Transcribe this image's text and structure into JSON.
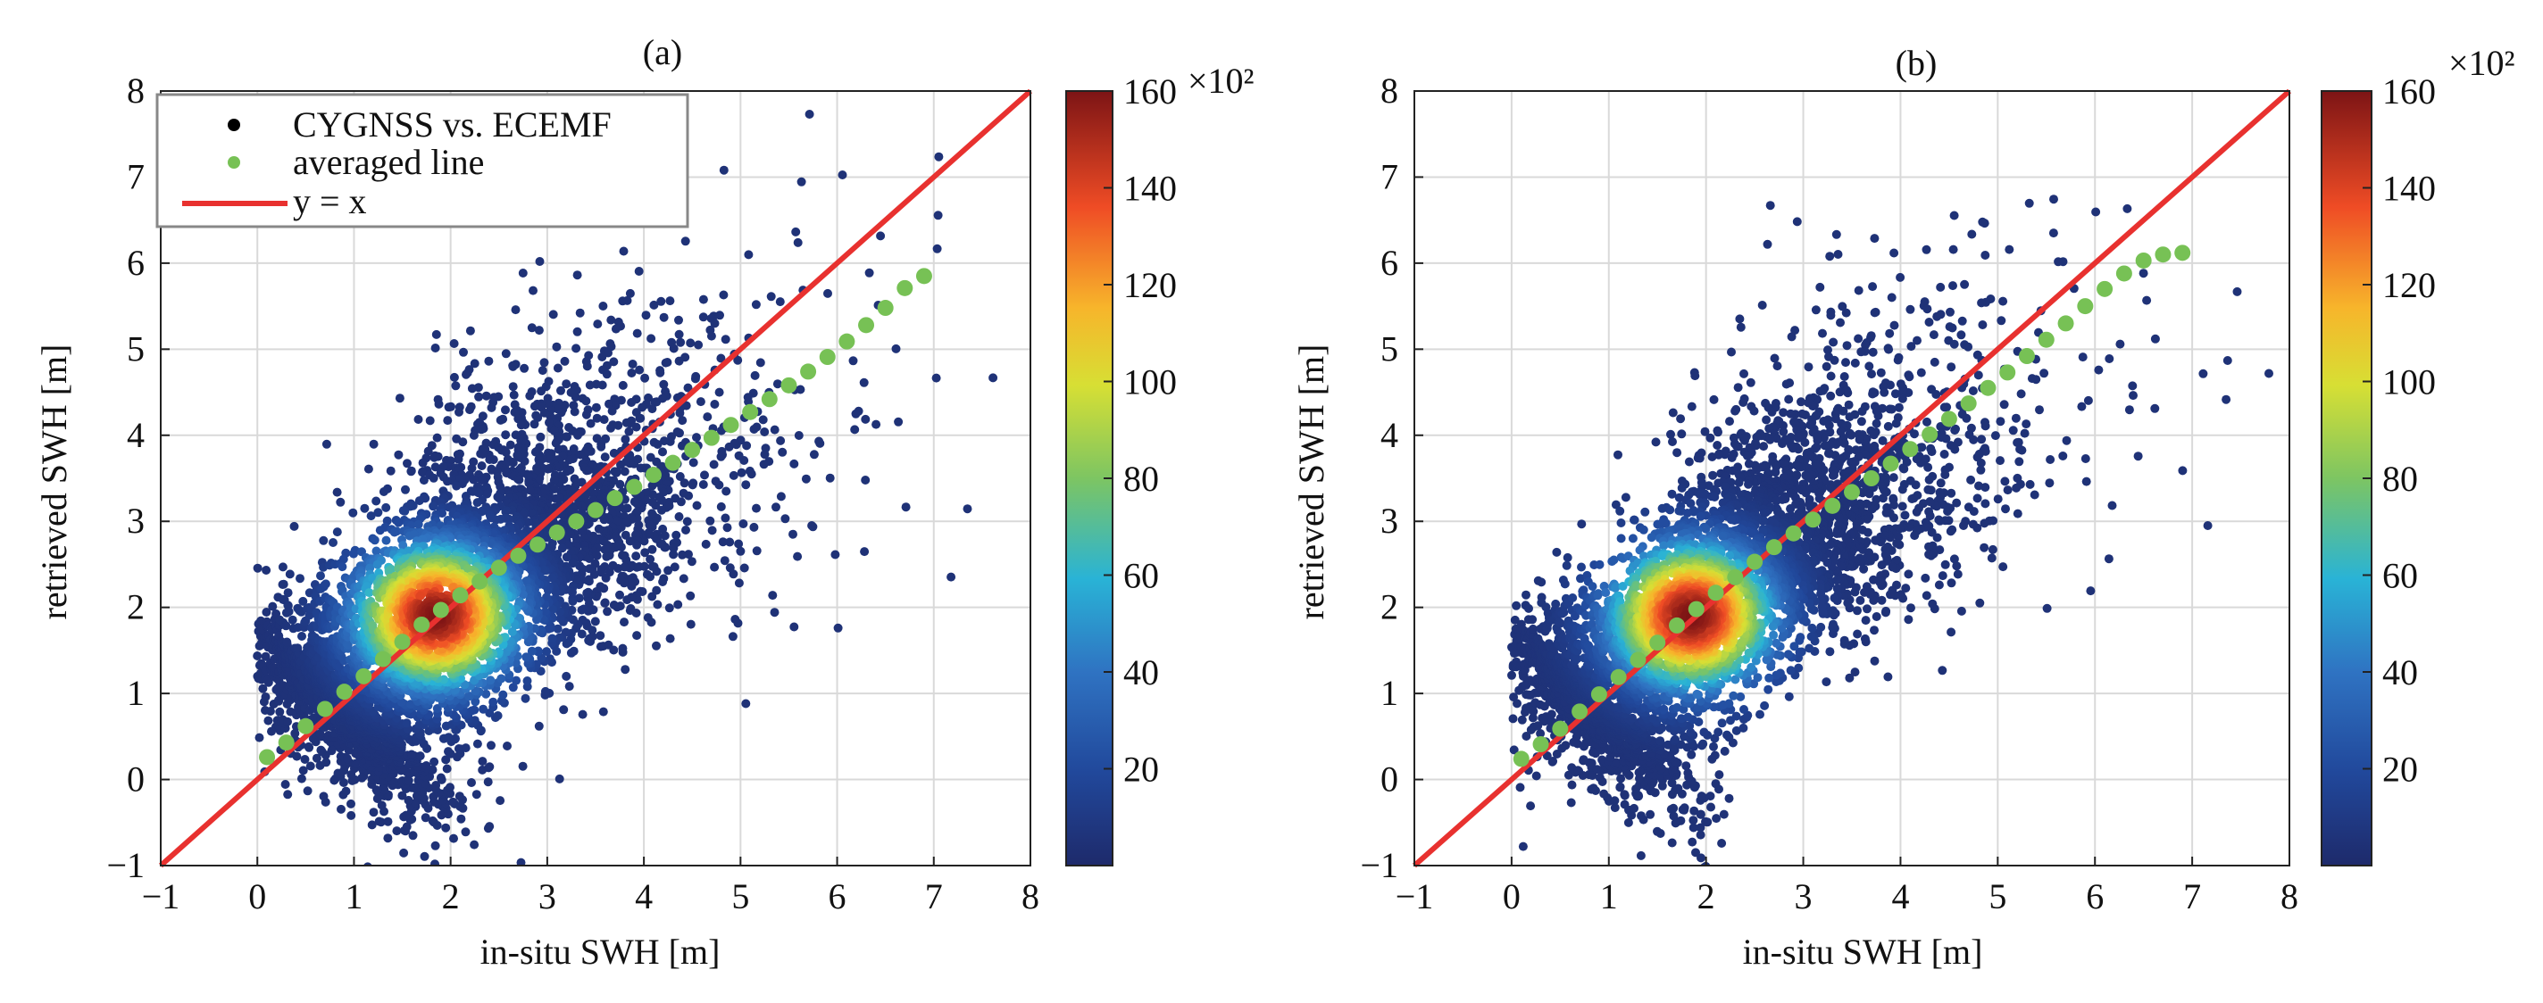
{
  "chart_data": [
    {
      "type": "scatter",
      "panel_label": "(a)",
      "xlabel": "in-situ SWH [m]",
      "ylabel": "retrieved SWH [m]",
      "xlim": [
        -1,
        8
      ],
      "ylim": [
        -1,
        8
      ],
      "xticks": [
        "−1",
        "0",
        "1",
        "2",
        "3",
        "4",
        "5",
        "6",
        "7",
        "8"
      ],
      "yticks": [
        "−1",
        "0",
        "1",
        "2",
        "3",
        "4",
        "5",
        "6",
        "7",
        "8"
      ],
      "grid": true,
      "legend": {
        "position": "top-left",
        "entries": [
          {
            "label": "CYGNSS vs. ECEMF",
            "marker": "dot",
            "color": "#000000"
          },
          {
            "label": "averaged line",
            "marker": "dot",
            "color": "#77c155"
          },
          {
            "label": "y = x",
            "marker": "line",
            "color": "#e8312f"
          }
        ]
      },
      "reference_line": {
        "label": "y = x",
        "from": [
          -1,
          -1
        ],
        "to": [
          8,
          8
        ],
        "color": "#e8312f"
      },
      "density_cloud": {
        "center": [
          1.85,
          1.9
        ],
        "spread_major": 1.55,
        "spread_minor": 0.55,
        "angle_deg": 45,
        "x_range": [
          0.0,
          8.0
        ]
      },
      "averaged_line": {
        "x": [
          0.1,
          0.3,
          0.5,
          0.7,
          0.9,
          1.1,
          1.3,
          1.5,
          1.7,
          1.9,
          2.1,
          2.3,
          2.5,
          2.7,
          2.9,
          3.1,
          3.3,
          3.5,
          3.7,
          3.9,
          4.1,
          4.3,
          4.5,
          4.7,
          4.9,
          5.1,
          5.3,
          5.5,
          5.7,
          5.9,
          6.1,
          6.3,
          6.5,
          6.7,
          6.9
        ],
        "y": [
          0.26,
          0.43,
          0.62,
          0.82,
          1.02,
          1.2,
          1.4,
          1.6,
          1.8,
          1.97,
          2.14,
          2.3,
          2.46,
          2.6,
          2.73,
          2.87,
          3.0,
          3.13,
          3.27,
          3.4,
          3.54,
          3.68,
          3.83,
          3.97,
          4.12,
          4.27,
          4.42,
          4.58,
          4.74,
          4.91,
          5.09,
          5.28,
          5.48,
          5.71,
          5.85
        ]
      },
      "colorbar": {
        "multiplier": "×10²",
        "ticks": [
          20,
          40,
          60,
          80,
          100,
          120,
          140,
          160
        ],
        "range": [
          0,
          160
        ]
      }
    },
    {
      "type": "scatter",
      "panel_label": "(b)",
      "xlabel": "in-situ SWH [m]",
      "ylabel": "retrieved SWH [m]",
      "xlim": [
        -1,
        8
      ],
      "ylim": [
        -1,
        8
      ],
      "xticks": [
        "−1",
        "0",
        "1",
        "2",
        "3",
        "4",
        "5",
        "6",
        "7",
        "8"
      ],
      "yticks": [
        "−1",
        "0",
        "1",
        "2",
        "3",
        "4",
        "5",
        "6",
        "7",
        "8"
      ],
      "grid": true,
      "reference_line": {
        "label": "y = x",
        "from": [
          -1,
          -1
        ],
        "to": [
          8,
          8
        ],
        "color": "#e8312f"
      },
      "density_cloud": {
        "center": [
          1.85,
          1.9
        ],
        "spread_major": 1.55,
        "spread_minor": 0.5,
        "angle_deg": 45,
        "x_range": [
          0.0,
          8.0
        ]
      },
      "averaged_line": {
        "x": [
          0.1,
          0.3,
          0.5,
          0.7,
          0.9,
          1.1,
          1.3,
          1.5,
          1.7,
          1.9,
          2.1,
          2.3,
          2.5,
          2.7,
          2.9,
          3.1,
          3.3,
          3.5,
          3.7,
          3.9,
          4.1,
          4.3,
          4.5,
          4.7,
          4.9,
          5.1,
          5.3,
          5.5,
          5.7,
          5.9,
          6.1,
          6.3,
          6.5,
          6.7,
          6.9
        ],
        "y": [
          0.24,
          0.41,
          0.59,
          0.79,
          0.99,
          1.19,
          1.39,
          1.59,
          1.79,
          1.98,
          2.17,
          2.35,
          2.53,
          2.7,
          2.86,
          3.02,
          3.18,
          3.34,
          3.5,
          3.67,
          3.84,
          4.01,
          4.19,
          4.37,
          4.55,
          4.73,
          4.92,
          5.11,
          5.3,
          5.5,
          5.7,
          5.88,
          6.03,
          6.1,
          6.12
        ]
      },
      "colorbar": {
        "multiplier": "×10²",
        "ticks": [
          20,
          40,
          60,
          80,
          100,
          120,
          140,
          160
        ],
        "range": [
          0,
          160
        ]
      }
    }
  ]
}
